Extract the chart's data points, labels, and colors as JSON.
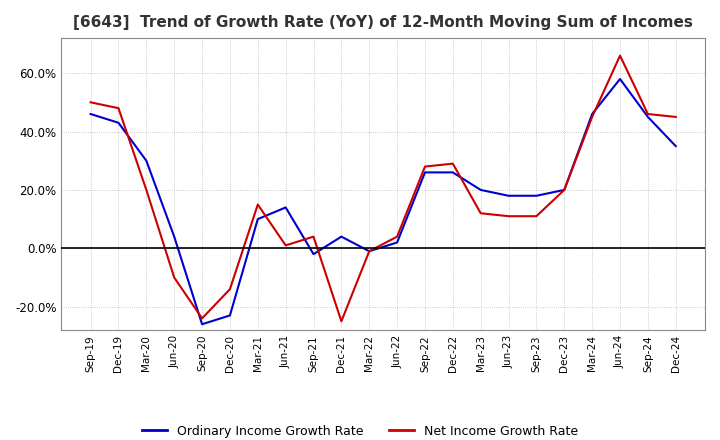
{
  "title": "[6643]  Trend of Growth Rate (YoY) of 12-Month Moving Sum of Incomes",
  "title_fontsize": 11,
  "ylim": [
    -0.28,
    0.72
  ],
  "yticks": [
    -0.2,
    0.0,
    0.2,
    0.4,
    0.6
  ],
  "background_color": "#ffffff",
  "grid_color": "#bbbbbb",
  "legend_labels": [
    "Ordinary Income Growth Rate",
    "Net Income Growth Rate"
  ],
  "line_colors": [
    "#0000cc",
    "#cc0000"
  ],
  "x_labels": [
    "Sep-19",
    "Dec-19",
    "Mar-20",
    "Jun-20",
    "Sep-20",
    "Dec-20",
    "Mar-21",
    "Jun-21",
    "Sep-21",
    "Dec-21",
    "Mar-22",
    "Jun-22",
    "Sep-22",
    "Dec-22",
    "Mar-23",
    "Jun-23",
    "Sep-23",
    "Dec-23",
    "Mar-24",
    "Jun-24",
    "Sep-24",
    "Dec-24"
  ],
  "ordinary_income": [
    0.46,
    0.43,
    0.3,
    0.04,
    -0.26,
    -0.23,
    0.1,
    0.14,
    -0.02,
    0.04,
    -0.01,
    0.02,
    0.26,
    0.26,
    0.2,
    0.18,
    0.18,
    0.2,
    0.46,
    0.58,
    0.45,
    0.35
  ],
  "net_income": [
    0.5,
    0.48,
    0.2,
    -0.1,
    -0.24,
    -0.14,
    0.15,
    0.01,
    0.04,
    -0.25,
    -0.01,
    0.04,
    0.28,
    0.29,
    0.12,
    0.11,
    0.11,
    0.2,
    0.45,
    0.66,
    0.46,
    0.45
  ]
}
